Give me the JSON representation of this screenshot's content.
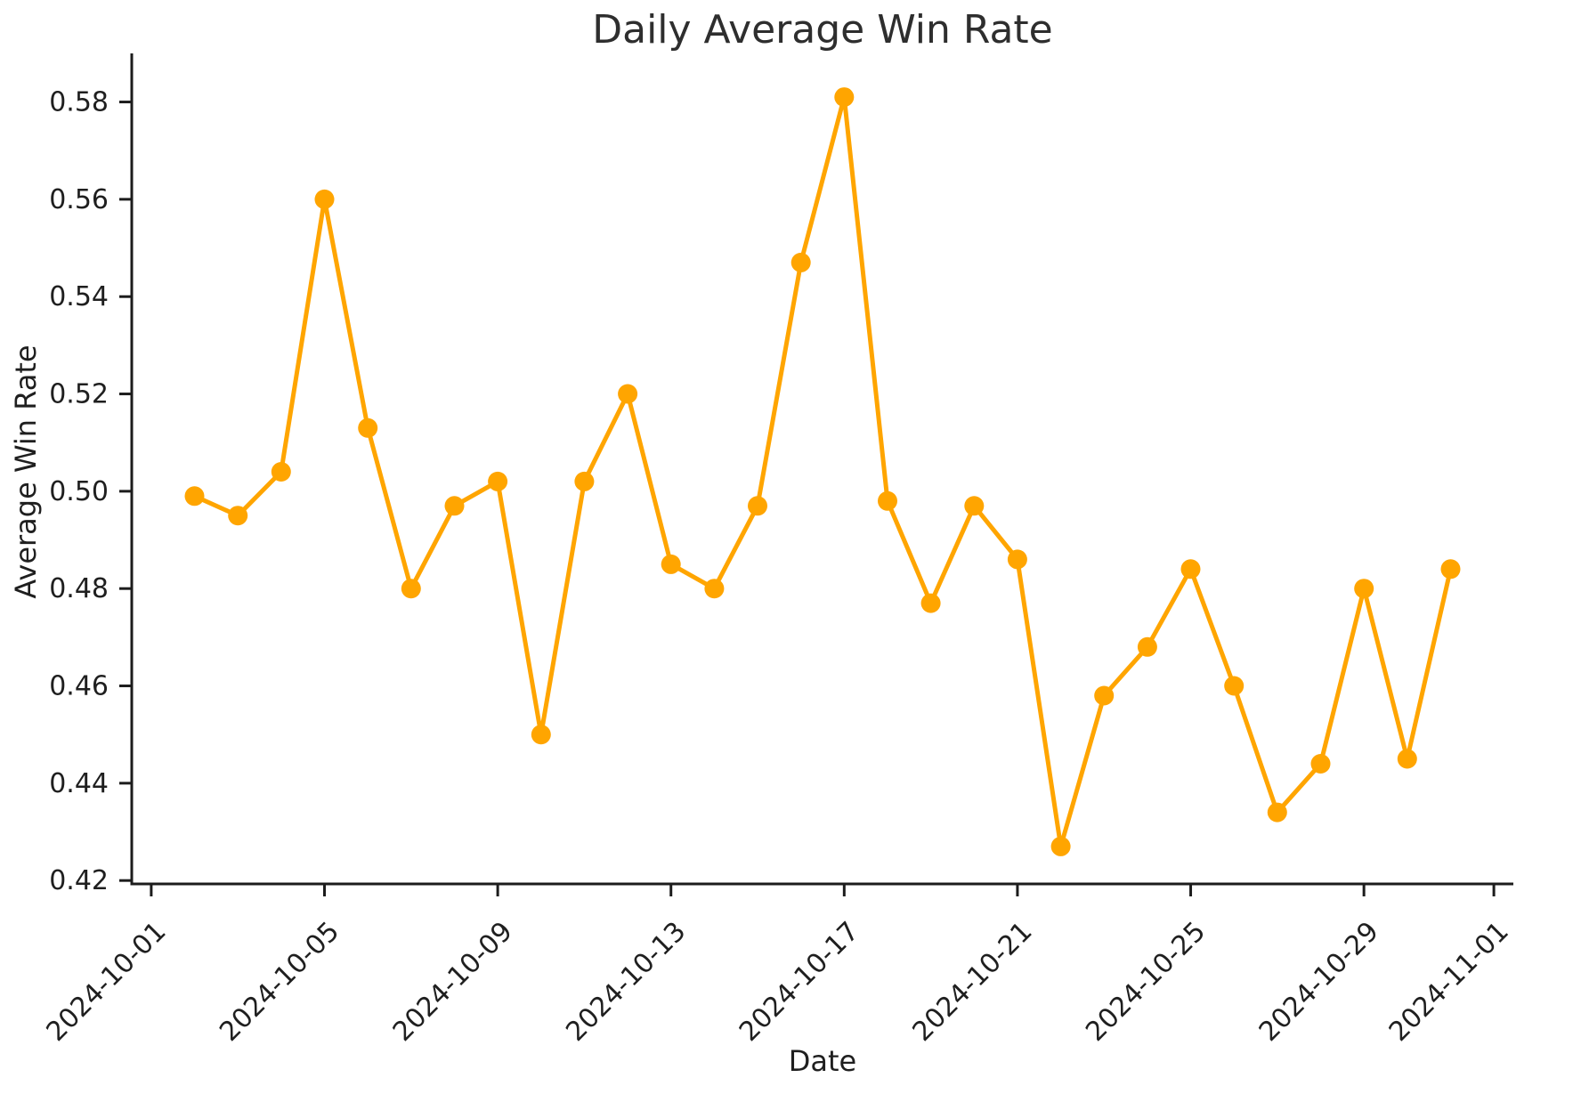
{
  "figure": {
    "background": "#ffffff"
  },
  "chart_data": {
    "type": "line",
    "title": "Daily Average Win Rate",
    "xlabel": "Date",
    "ylabel": "Average Win Rate",
    "x": [
      "2024-10-02",
      "2024-10-03",
      "2024-10-04",
      "2024-10-05",
      "2024-10-06",
      "2024-10-07",
      "2024-10-08",
      "2024-10-09",
      "2024-10-10",
      "2024-10-11",
      "2024-10-12",
      "2024-10-13",
      "2024-10-14",
      "2024-10-15",
      "2024-10-16",
      "2024-10-17",
      "2024-10-18",
      "2024-10-19",
      "2024-10-20",
      "2024-10-21",
      "2024-10-22",
      "2024-10-23",
      "2024-10-24",
      "2024-10-25",
      "2024-10-26",
      "2024-10-27",
      "2024-10-28",
      "2024-10-29",
      "2024-10-30",
      "2024-10-31"
    ],
    "values": [
      0.499,
      0.495,
      0.504,
      0.56,
      0.513,
      0.48,
      0.497,
      0.502,
      0.45,
      0.502,
      0.52,
      0.485,
      0.48,
      0.497,
      0.547,
      0.581,
      0.498,
      0.477,
      0.497,
      0.486,
      0.427,
      0.458,
      0.468,
      0.484,
      0.46,
      0.434,
      0.444,
      0.48,
      0.445,
      0.484
    ],
    "series": [
      {
        "name": "Average Win Rate",
        "color": "#FFA500",
        "marker": "circle"
      }
    ],
    "x_ticks": [
      "2024-10-01",
      "2024-10-05",
      "2024-10-09",
      "2024-10-13",
      "2024-10-17",
      "2024-10-21",
      "2024-10-25",
      "2024-10-29",
      "2024-11-01"
    ],
    "y_ticks": [
      0.42,
      0.44,
      0.46,
      0.48,
      0.5,
      0.52,
      0.54,
      0.56,
      0.58
    ],
    "y_tick_labels": [
      "0.42",
      "0.44",
      "0.46",
      "0.48",
      "0.50",
      "0.52",
      "0.54",
      "0.56",
      "0.58"
    ],
    "ylim": [
      0.4193,
      0.5887
    ],
    "xlim_days_from_2024_10_01": [
      -0.45,
      31.45
    ],
    "grid": false,
    "legend_position": "none",
    "axis_color": "#1c1c1c",
    "text_color": "#1f1f1f",
    "x_tick_rotation_deg": 45
  }
}
